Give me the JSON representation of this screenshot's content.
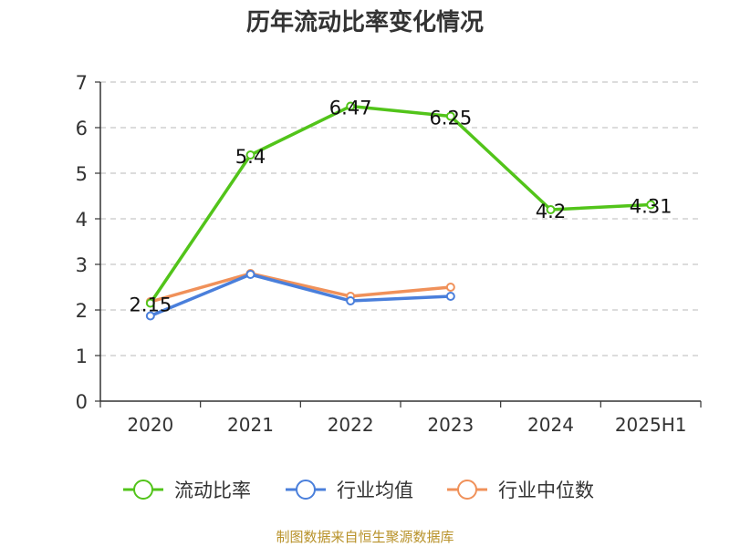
{
  "chart_data": {
    "type": "line",
    "title": "历年流动比率变化情况",
    "categories": [
      "2020",
      "2021",
      "2022",
      "2023",
      "2024",
      "2025H1"
    ],
    "ylim": [
      0,
      7
    ],
    "yticks": [
      0,
      1,
      2,
      3,
      4,
      5,
      6,
      7
    ],
    "grid": true,
    "legend_position": "bottom",
    "series": [
      {
        "name": "流动比率",
        "color": "#52c41a",
        "values": [
          2.15,
          5.4,
          6.47,
          6.25,
          4.2,
          4.31
        ],
        "labels": [
          "2.15",
          "5.4",
          "6.47",
          "6.25",
          "4.2",
          "4.31"
        ]
      },
      {
        "name": "行业均值",
        "color": "#4a7fdb",
        "values": [
          1.87,
          2.78,
          2.2,
          2.3,
          null,
          null
        ]
      },
      {
        "name": "行业中位数",
        "color": "#f0915a",
        "values": [
          2.18,
          2.8,
          2.3,
          2.5,
          null,
          null
        ]
      }
    ]
  },
  "source_note": "制图数据来自恒生聚源数据库"
}
